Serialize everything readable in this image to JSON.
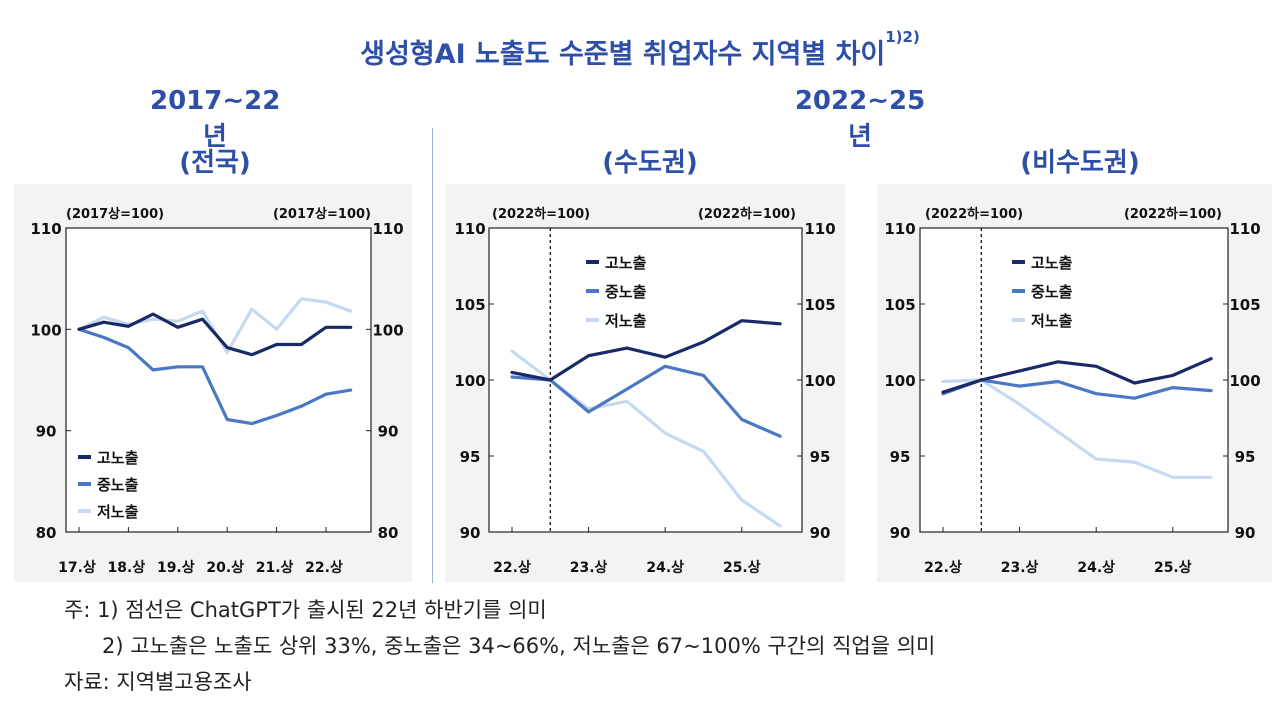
{
  "title": "생성형AI 노출도 수준별 취업자수 지역별 차이",
  "title_sup": "1)2)",
  "period_left": "2017~22년",
  "period_right": "2022~25년",
  "notes": [
    "주: 1) 점선은 ChatGPT가 출시된 22년 하반기를 의미",
    "2) 고노출은 노출도 상위 33%, 중노출은 34~66%, 저노출은 67~100% 구간의 직업을 의미",
    "자료: 지역별고용조사"
  ],
  "colors": {
    "high": "#1a2a66",
    "mid": "#4a78c4",
    "low": "#c6d9f0",
    "accent": "#2e4fa8"
  },
  "chart_data": [
    {
      "type": "line",
      "title": "(전국)",
      "unit_left": "(2017상=100)",
      "unit_right": "(2017상=100)",
      "ylim": [
        80,
        110
      ],
      "yticks": [
        "110",
        "100",
        "90",
        "80"
      ],
      "xticks": [
        "17.상",
        "18.상",
        "19.상",
        "20.상",
        "21.상",
        "22.상"
      ],
      "legend_position": "bottom-left",
      "x": [
        "17.상",
        "17.하",
        "18.상",
        "18.하",
        "19.상",
        "19.하",
        "20.상",
        "20.하",
        "21.상",
        "21.하",
        "22.상",
        "22.하"
      ],
      "series": [
        {
          "name": "고노출",
          "color_key": "high",
          "values": [
            100,
            100.7,
            100.3,
            101.5,
            100.2,
            101,
            98.2,
            97.5,
            98.5,
            98.5,
            100.2,
            100.2
          ]
        },
        {
          "name": "중노출",
          "color_key": "mid",
          "values": [
            100,
            99.2,
            98.2,
            96,
            96.3,
            96.3,
            91.1,
            90.7,
            91.5,
            92.4,
            93.6,
            94
          ]
        },
        {
          "name": "저노출",
          "color_key": "low",
          "values": [
            100,
            101.2,
            100.5,
            101,
            100.8,
            101.8,
            97.7,
            102,
            100,
            103,
            102.7,
            101.8
          ]
        }
      ]
    },
    {
      "type": "line",
      "title": "(수도권)",
      "unit_left": "(2022하=100)",
      "unit_right": "(2022하=100)",
      "ylim": [
        90,
        110
      ],
      "yticks": [
        "110",
        "105",
        "100",
        "95",
        "90"
      ],
      "xticks": [
        "22.상",
        "23.상",
        "24.상",
        "25.상"
      ],
      "legend_position": "top-center",
      "dashed_at": "22.하",
      "x": [
        "22.상",
        "22.하",
        "23.상",
        "23.하",
        "24.상",
        "24.하",
        "25.상",
        "25.하"
      ],
      "series": [
        {
          "name": "고노출",
          "color_key": "high",
          "values": [
            100.5,
            100,
            101.6,
            102.1,
            101.5,
            102.5,
            103.9,
            103.7
          ]
        },
        {
          "name": "중노출",
          "color_key": "mid",
          "values": [
            100.2,
            100,
            97.9,
            99.4,
            100.9,
            100.3,
            97.4,
            96.3
          ]
        },
        {
          "name": "저노출",
          "color_key": "low",
          "values": [
            101.9,
            100,
            98.1,
            98.6,
            96.5,
            95.3,
            92.1,
            90.4
          ]
        }
      ]
    },
    {
      "type": "line",
      "title": "(비수도권)",
      "unit_left": "(2022하=100)",
      "unit_right": "(2022하=100)",
      "ylim": [
        90,
        110
      ],
      "yticks": [
        "110",
        "105",
        "100",
        "95",
        "90"
      ],
      "xticks": [
        "22.상",
        "23.상",
        "24.상",
        "25.상"
      ],
      "legend_position": "top-center",
      "dashed_at": "22.하",
      "x": [
        "22.상",
        "22.하",
        "23.상",
        "23.하",
        "24.상",
        "24.하",
        "25.상",
        "25.하"
      ],
      "series": [
        {
          "name": "고노출",
          "color_key": "high",
          "values": [
            99.2,
            100,
            100.6,
            101.2,
            100.9,
            99.8,
            100.3,
            101.4
          ]
        },
        {
          "name": "중노출",
          "color_key": "mid",
          "values": [
            99.1,
            100,
            99.6,
            99.9,
            99.1,
            98.8,
            99.5,
            99.3
          ]
        },
        {
          "name": "저노출",
          "color_key": "low",
          "values": [
            99.9,
            100,
            98.4,
            96.6,
            94.8,
            94.6,
            93.6,
            93.6
          ]
        }
      ]
    }
  ]
}
